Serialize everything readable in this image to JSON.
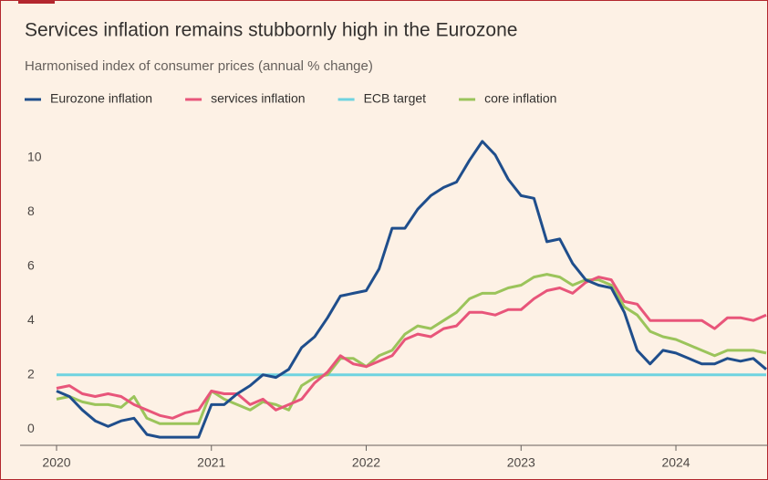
{
  "chart_data": {
    "type": "line",
    "title": "Services inflation remains stubbornly high in the Eurozone",
    "subtitle": "Harmonised index of consumer prices (annual % change)",
    "x": [
      2020,
      2020.083,
      2020.167,
      2020.25,
      2020.333,
      2020.417,
      2020.5,
      2020.583,
      2020.667,
      2020.75,
      2020.833,
      2020.917,
      2021,
      2021.083,
      2021.167,
      2021.25,
      2021.333,
      2021.417,
      2021.5,
      2021.583,
      2021.667,
      2021.75,
      2021.833,
      2021.917,
      2022,
      2022.083,
      2022.167,
      2022.25,
      2022.333,
      2022.417,
      2022.5,
      2022.583,
      2022.667,
      2022.75,
      2022.833,
      2022.917,
      2023,
      2023.083,
      2023.167,
      2023.25,
      2023.333,
      2023.417,
      2023.5,
      2023.583,
      2023.667,
      2023.75,
      2023.833,
      2023.917,
      2024,
      2024.083,
      2024.167,
      2024.25,
      2024.333,
      2024.417,
      2024.5,
      2024.583
    ],
    "series": [
      {
        "name": "Eurozone inflation",
        "color": "#1f4e8c",
        "values": [
          1.4,
          1.2,
          0.7,
          0.3,
          0.1,
          0.3,
          0.4,
          -0.2,
          -0.3,
          -0.3,
          -0.3,
          -0.3,
          0.9,
          0.9,
          1.3,
          1.6,
          2.0,
          1.9,
          2.2,
          3.0,
          3.4,
          4.1,
          4.9,
          5.0,
          5.1,
          5.9,
          7.4,
          7.4,
          8.1,
          8.6,
          8.9,
          9.1,
          9.9,
          10.6,
          10.1,
          9.2,
          8.6,
          8.5,
          6.9,
          7.0,
          6.1,
          5.5,
          5.3,
          5.2,
          4.3,
          2.9,
          2.4,
          2.9,
          2.8,
          2.6,
          2.4,
          2.4,
          2.6,
          2.5,
          2.6,
          2.2
        ]
      },
      {
        "name": "services inflation",
        "color": "#e8557a",
        "values": [
          1.5,
          1.6,
          1.3,
          1.2,
          1.3,
          1.2,
          0.9,
          0.7,
          0.5,
          0.4,
          0.6,
          0.7,
          1.4,
          1.3,
          1.3,
          0.9,
          1.1,
          0.7,
          0.9,
          1.1,
          1.7,
          2.1,
          2.7,
          2.4,
          2.3,
          2.5,
          2.7,
          3.3,
          3.5,
          3.4,
          3.7,
          3.8,
          4.3,
          4.3,
          4.2,
          4.4,
          4.4,
          4.8,
          5.1,
          5.2,
          5.0,
          5.4,
          5.6,
          5.5,
          4.7,
          4.6,
          4.0,
          4.0,
          4.0,
          4.0,
          4.0,
          3.7,
          4.1,
          4.1,
          4.0,
          4.2
        ]
      },
      {
        "name": "ECB target",
        "color": "#6fd3e0",
        "values": [
          2,
          2,
          2,
          2,
          2,
          2,
          2,
          2,
          2,
          2,
          2,
          2,
          2,
          2,
          2,
          2,
          2,
          2,
          2,
          2,
          2,
          2,
          2,
          2,
          2,
          2,
          2,
          2,
          2,
          2,
          2,
          2,
          2,
          2,
          2,
          2,
          2,
          2,
          2,
          2,
          2,
          2,
          2,
          2,
          2,
          2,
          2,
          2,
          2,
          2,
          2,
          2,
          2,
          2,
          2,
          2
        ]
      },
      {
        "name": "core inflation",
        "color": "#9bc45b",
        "values": [
          1.1,
          1.2,
          1.0,
          0.9,
          0.9,
          0.8,
          1.2,
          0.4,
          0.2,
          0.2,
          0.2,
          0.2,
          1.4,
          1.1,
          0.9,
          0.7,
          1.0,
          0.9,
          0.7,
          1.6,
          1.9,
          2.0,
          2.6,
          2.6,
          2.3,
          2.7,
          2.9,
          3.5,
          3.8,
          3.7,
          4.0,
          4.3,
          4.8,
          5.0,
          5.0,
          5.2,
          5.3,
          5.6,
          5.7,
          5.6,
          5.3,
          5.5,
          5.5,
          5.3,
          4.5,
          4.2,
          3.6,
          3.4,
          3.3,
          3.1,
          2.9,
          2.7,
          2.9,
          2.9,
          2.9,
          2.8
        ]
      }
    ],
    "xlim": [
      2020,
      2024.583
    ],
    "xticks": [
      2020,
      2021,
      2022,
      2023,
      2024
    ],
    "ylim": [
      -0.6,
      11.1
    ],
    "yticks": [
      0,
      2,
      4,
      6,
      8,
      10
    ]
  }
}
